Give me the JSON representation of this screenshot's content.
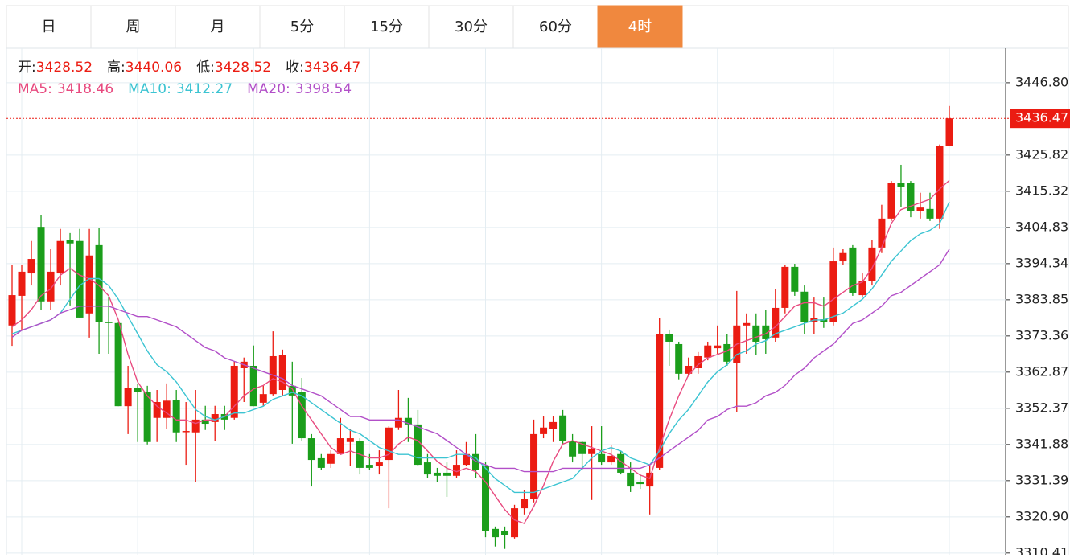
{
  "tabs": {
    "items": [
      "日",
      "周",
      "月",
      "5分",
      "15分",
      "30分",
      "60分",
      "4时"
    ],
    "active": 7,
    "active_color": "#f0883e"
  },
  "chart_data": {
    "type": "candlestick",
    "ohlc_labels": [
      "开:",
      "高:",
      "低:",
      "收:"
    ],
    "up_color": "#eb1c12",
    "down_color": "#1b9e1b",
    "ylim": [
      3309.9,
      3456.8
    ],
    "yticks": [
      {
        "value": 3446.8,
        "label": "3446.80"
      },
      {
        "value": 3425.82,
        "label": "3425.82"
      },
      {
        "value": 3415.32,
        "label": "3415.32"
      },
      {
        "value": 3404.83,
        "label": "3404.83"
      },
      {
        "value": 3394.34,
        "label": "3394.34"
      },
      {
        "value": 3383.85,
        "label": "3383.85"
      },
      {
        "value": 3373.36,
        "label": "3373.36"
      },
      {
        "value": 3362.87,
        "label": "3362.87"
      },
      {
        "value": 3352.37,
        "label": "3352.37"
      },
      {
        "value": 3341.88,
        "label": "3341.88"
      },
      {
        "value": 3331.39,
        "label": "3331.39"
      },
      {
        "value": 3320.9,
        "label": "3320.90"
      },
      {
        "value": 3310.41,
        "label": "3310.41"
      }
    ],
    "grid": true,
    "open": [
      3376.4,
      3385.0,
      3391.5,
      3405.0,
      3383.4,
      3391.5,
      3401.3,
      3400.9,
      3379.9,
      3399.7,
      3377.5,
      3377.1,
      3353.0,
      3358.4,
      3357.2,
      3349.6,
      3349.6,
      3354.9,
      3345.6,
      3345.4,
      3349.1,
      3348.4,
      3350.7,
      3349.6,
      3364.0,
      3364.7,
      3354.0,
      3356.5,
      3357.7,
      3358.9,
      3357.2,
      3343.7,
      3337.9,
      3336.3,
      3339.1,
      3342.6,
      3343.0,
      3336.0,
      3335.6,
      3337.4,
      3346.8,
      3349.6,
      3347.7,
      3336.7,
      3333.7,
      3333.7,
      3332.8,
      3336.0,
      3339.1,
      3335.6,
      3317.4,
      3316.9,
      3315.0,
      3323.4,
      3326.2,
      3344.9,
      3346.5,
      3350.3,
      3343.0,
      3342.6,
      3339.1,
      3339.1,
      3336.7,
      3339.1,
      3333.7,
      3330.9,
      3329.7,
      3335.1,
      3374.0,
      3371.0,
      3362.4,
      3364.0,
      3367.1,
      3369.8,
      3371.0,
      3365.4,
      3376.4,
      3376.4,
      3376.4,
      3372.9,
      3381.5,
      3393.4,
      3386.2,
      3377.3,
      3378.2,
      3377.5,
      3395.0,
      3399.0,
      3385.2,
      3389.2,
      3399.0,
      3407.4,
      3417.7,
      3417.7,
      3409.7,
      3410.2,
      3407.4,
      3428.52
    ],
    "high": [
      3393.9,
      3393.9,
      3400.9,
      3408.5,
      3398.5,
      3404.4,
      3403.2,
      3404.4,
      3404.4,
      3404.8,
      3384.5,
      3377.5,
      3364.7,
      3359.4,
      3358.9,
      3357.7,
      3359.6,
      3357.7,
      3354.2,
      3357.7,
      3353.1,
      3353.1,
      3353.1,
      3365.9,
      3367.1,
      3370.6,
      3358.9,
      3374.7,
      3369.4,
      3365.9,
      3361.2,
      3344.9,
      3339.1,
      3340.2,
      3349.6,
      3346.3,
      3343.7,
      3339.1,
      3340.2,
      3347.2,
      3357.7,
      3355.4,
      3351.9,
      3339.1,
      3335.1,
      3336.7,
      3340.2,
      3342.6,
      3344.9,
      3336.7,
      3318.1,
      3318.1,
      3324.4,
      3328.6,
      3349.1,
      3350.0,
      3350.0,
      3351.9,
      3344.9,
      3343.0,
      3347.2,
      3347.2,
      3341.8,
      3340.0,
      3336.7,
      3333.2,
      3336.0,
      3378.7,
      3375.2,
      3371.7,
      3367.1,
      3368.7,
      3371.7,
      3376.4,
      3374.0,
      3386.4,
      3379.9,
      3379.9,
      3381.0,
      3386.9,
      3393.9,
      3394.3,
      3388.0,
      3384.5,
      3384.5,
      3399.0,
      3398.5,
      3399.7,
      3391.5,
      3401.3,
      3411.4,
      3418.3,
      3423.0,
      3418.3,
      3414.9,
      3414.9,
      3428.9,
      3440.06
    ],
    "low": [
      3370.5,
      3375.2,
      3388.0,
      3381.0,
      3381.0,
      3388.0,
      3382.2,
      3378.7,
      3372.9,
      3368.2,
      3368.2,
      3353.0,
      3344.9,
      3342.6,
      3341.9,
      3342.6,
      3346.3,
      3342.6,
      3336.0,
      3330.9,
      3346.1,
      3343.0,
      3346.1,
      3349.1,
      3354.2,
      3353.0,
      3353.0,
      3356.1,
      3356.1,
      3342.1,
      3343.0,
      3329.7,
      3334.4,
      3335.1,
      3339.1,
      3335.6,
      3333.2,
      3334.4,
      3333.2,
      3323.4,
      3346.1,
      3342.6,
      3335.6,
      3332.1,
      3331.1,
      3326.7,
      3332.1,
      3335.6,
      3332.1,
      3315.0,
      3312.3,
      3311.6,
      3314.6,
      3321.6,
      3325.1,
      3343.7,
      3342.6,
      3342.1,
      3336.7,
      3334.4,
      3325.8,
      3336.0,
      3336.0,
      3333.2,
      3328.1,
      3329.0,
      3321.6,
      3334.4,
      3364.7,
      3360.8,
      3361.6,
      3362.4,
      3366.3,
      3368.2,
      3364.7,
      3351.4,
      3368.2,
      3367.8,
      3368.2,
      3371.7,
      3379.9,
      3385.0,
      3374.0,
      3374.0,
      3375.7,
      3376.4,
      3393.9,
      3385.0,
      3384.5,
      3388.0,
      3397.4,
      3406.7,
      3410.7,
      3407.8,
      3407.4,
      3406.7,
      3404.4,
      3428.52
    ],
    "close": [
      3385.2,
      3392.0,
      3395.7,
      3383.4,
      3392.0,
      3400.9,
      3400.2,
      3378.7,
      3396.7,
      3377.5,
      3377.1,
      3353.0,
      3358.2,
      3357.2,
      3342.6,
      3354.2,
      3354.6,
      3345.4,
      3345.8,
      3349.1,
      3347.9,
      3350.7,
      3349.1,
      3364.7,
      3365.9,
      3353.0,
      3356.5,
      3367.5,
      3367.8,
      3356.1,
      3343.7,
      3337.4,
      3335.1,
      3339.1,
      3343.7,
      3343.7,
      3335.1,
      3335.1,
      3336.7,
      3346.8,
      3349.6,
      3347.7,
      3336.0,
      3333.2,
      3332.8,
      3332.8,
      3336.0,
      3339.1,
      3334.4,
      3316.9,
      3315.0,
      3315.7,
      3323.4,
      3326.2,
      3344.9,
      3346.8,
      3348.4,
      3343.0,
      3338.4,
      3339.1,
      3340.7,
      3336.7,
      3338.6,
      3333.7,
      3329.7,
      3330.4,
      3333.7,
      3374.0,
      3371.7,
      3362.4,
      3364.7,
      3367.5,
      3370.6,
      3370.6,
      3365.9,
      3376.4,
      3377.1,
      3371.7,
      3372.4,
      3381.5,
      3393.4,
      3386.2,
      3377.5,
      3378.5,
      3377.5,
      3395.0,
      3397.4,
      3385.7,
      3389.2,
      3399.0,
      3407.4,
      3417.7,
      3416.7,
      3409.7,
      3410.6,
      3407.4,
      3428.4,
      3436.47
    ],
    "series": [
      {
        "name": "MA5:",
        "color": "#e84a7f",
        "values": [
          3376,
          3378,
          3381,
          3385,
          3387,
          3391,
          3393,
          3391,
          3390,
          3388,
          3385,
          3378,
          3368,
          3360,
          3356,
          3353,
          3351,
          3349,
          3349,
          3348,
          3349,
          3349,
          3350,
          3353,
          3356,
          3358,
          3359,
          3361,
          3360,
          3358,
          3353,
          3349,
          3345,
          3341,
          3339,
          3340,
          3339,
          3338,
          3338,
          3339,
          3342,
          3344,
          3343,
          3340,
          3337,
          3335,
          3334,
          3335,
          3334,
          3331,
          3327,
          3323,
          3320,
          3319,
          3324,
          3330,
          3337,
          3342,
          3343,
          3342,
          3341,
          3340,
          3339,
          3337,
          3335,
          3333,
          3332,
          3341,
          3349,
          3356,
          3362,
          3365,
          3367,
          3368,
          3369,
          3371,
          3372,
          3373,
          3374,
          3376,
          3379,
          3382,
          3383,
          3383,
          3382,
          3384,
          3386,
          3388,
          3389,
          3393,
          3399,
          3406,
          3410,
          3411,
          3412,
          3413,
          3416,
          3418.46
        ]
      },
      {
        "name": "MA10:",
        "color": "#3cc4d2",
        "values": [
          3374,
          3375,
          3376,
          3377,
          3378,
          3380,
          3384,
          3388,
          3390,
          3390,
          3388,
          3384,
          3379,
          3374,
          3369,
          3365,
          3363,
          3360,
          3356,
          3352,
          3350,
          3349,
          3350,
          3351,
          3351,
          3352,
          3353,
          3355,
          3356,
          3357,
          3356,
          3354,
          3352,
          3350,
          3348,
          3346,
          3345,
          3343,
          3341,
          3340,
          3339,
          3339,
          3338,
          3338,
          3338,
          3338,
          3339,
          3339,
          3338,
          3335,
          3332,
          3330,
          3328,
          3328,
          3328,
          3329,
          3330,
          3331,
          3332,
          3335,
          3338,
          3340,
          3341,
          3340,
          3338,
          3337,
          3336,
          3340,
          3345,
          3349,
          3352,
          3356,
          3360,
          3363,
          3365,
          3368,
          3369,
          3371,
          3372,
          3374,
          3375,
          3376,
          3377,
          3378,
          3378,
          3379,
          3380,
          3382,
          3384,
          3387,
          3391,
          3395,
          3398,
          3401,
          3403,
          3404,
          3406,
          3412.27
        ]
      },
      {
        "name": "MA20:",
        "color": "#b24fc8",
        "values": [
          3373,
          3375,
          3376,
          3377,
          3378,
          3380,
          3381,
          3382,
          3382,
          3382,
          3382,
          3381,
          3380,
          3379,
          3379,
          3378,
          3377,
          3376,
          3374,
          3372,
          3370,
          3369,
          3367,
          3366,
          3365,
          3364,
          3363,
          3362,
          3361,
          3359,
          3358,
          3357,
          3356,
          3354,
          3352,
          3350,
          3350,
          3349,
          3349,
          3349,
          3349,
          3348,
          3347,
          3346,
          3345,
          3343,
          3341,
          3339,
          3337,
          3336,
          3335,
          3335,
          3335,
          3334,
          3334,
          3334,
          3334,
          3335,
          3335,
          3335,
          3335,
          3335,
          3335,
          3335,
          3335,
          3335,
          3336,
          3338,
          3340,
          3342,
          3344,
          3346,
          3349,
          3350,
          3352,
          3353,
          3353,
          3354,
          3356,
          3357,
          3359,
          3362,
          3364,
          3367,
          3369,
          3371,
          3374,
          3377,
          3378,
          3380,
          3382,
          3385,
          3386,
          3388,
          3390,
          3392,
          3394,
          3398.54
        ]
      }
    ]
  }
}
